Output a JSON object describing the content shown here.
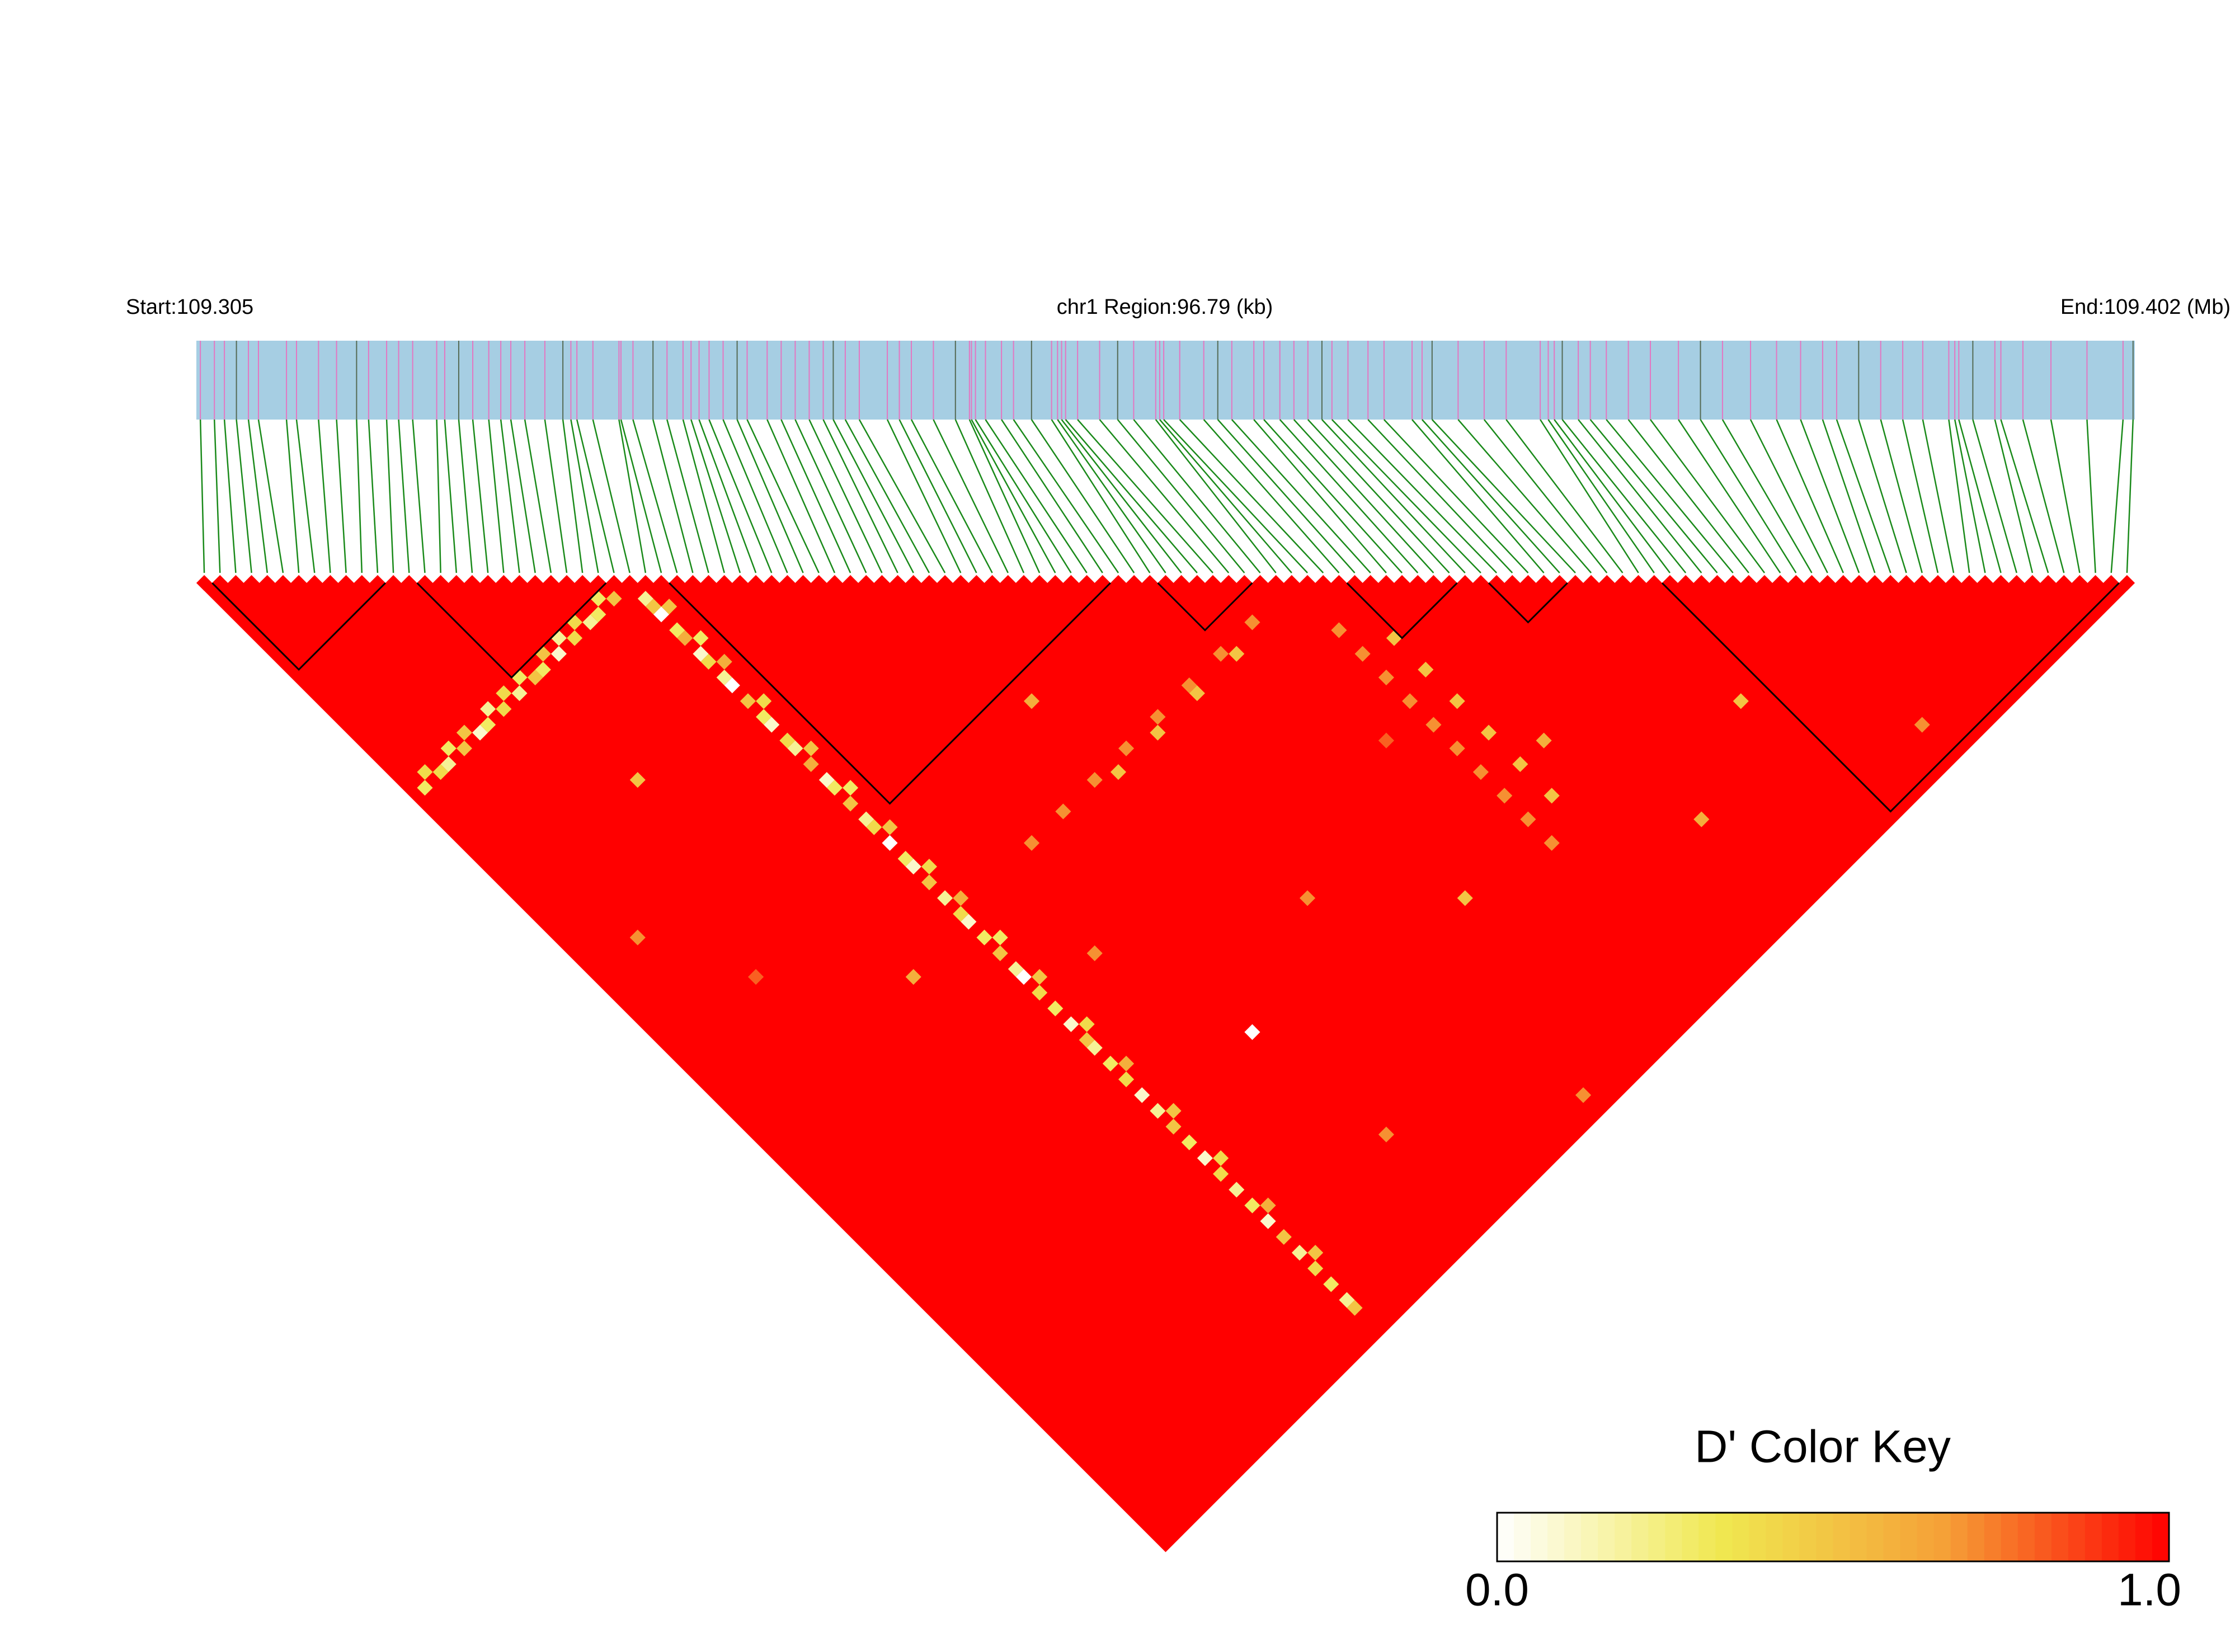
{
  "chart_data": {
    "type": "ld_heatmap",
    "start_label": "Start:109.305",
    "region_label": "chr1 Region:96.79 (kb)",
    "end_label": "End:109.402 (Mb)",
    "xlim": [
      0,
      96.79
    ],
    "snp_positions_kb": [
      0.2,
      0.9,
      1.4,
      2.0,
      2.6,
      3.1,
      4.5,
      5.0,
      6.1,
      7.0,
      8.0,
      8.6,
      9.5,
      10.1,
      10.8,
      12.0,
      12.4,
      13.1,
      13.8,
      14.6,
      15.2,
      15.7,
      16.4,
      17.4,
      18.3,
      18.7,
      19.0,
      19.8,
      21.1,
      21.2,
      21.8,
      22.8,
      23.5,
      24.3,
      24.7,
      25.1,
      25.6,
      26.3,
      27.0,
      27.5,
      28.5,
      29.2,
      29.9,
      30.6,
      31.3,
      31.8,
      32.4,
      33.1,
      34.5,
      35.1,
      35.7,
      36.8,
      37.9,
      38.6,
      38.7,
      38.9,
      39.4,
      40.2,
      40.8,
      41.7,
      42.7,
      43.0,
      43.2,
      43.4,
      44.0,
      45.1,
      46.0,
      46.8,
      47.9,
      48.1,
      48.3,
      49.1,
      50.3,
      51.0,
      51.7,
      52.8,
      53.3,
      54.1,
      54.8,
      55.5,
      56.2,
      56.7,
      57.5,
      58.5,
      59.3,
      60.7,
      61.2,
      61.7,
      63.0,
      64.3,
      65.4,
      67.1,
      67.5,
      67.8,
      68.2,
      69.0,
      69.6,
      70.4,
      71.5,
      72.6,
      74.0,
      75.1,
      76.2,
      77.6,
      78.9,
      80.1,
      81.2,
      81.9,
      83.0,
      84.1,
      85.2,
      86.2,
      87.5,
      87.8,
      88.0,
      88.7,
      89.8,
      90.1,
      91.2,
      92.6,
      94.4,
      96.2,
      96.7
    ],
    "blocks": [
      [
        1,
        11
      ],
      [
        14,
        25
      ],
      [
        30,
        57
      ],
      [
        61,
        66
      ],
      [
        73,
        79
      ],
      [
        82,
        86
      ],
      [
        93,
        121
      ]
    ],
    "colormap": [
      "#ffffff",
      "#f0e850",
      "#f5a037",
      "#ff0000"
    ],
    "color_key_title": "D' Color Key",
    "key_ticks": [
      {
        "value": 0,
        "label": "0.0"
      },
      {
        "value": 1,
        "label": "1.0"
      }
    ],
    "cells": [
      [
        27,
        29,
        0.2
      ],
      [
        27,
        30,
        0.5
      ],
      [
        27,
        31,
        0
      ],
      [
        27,
        33,
        0.3
      ],
      [
        27,
        34,
        0.6
      ],
      [
        27,
        36,
        0.1
      ],
      [
        27,
        37,
        0.4
      ],
      [
        27,
        39,
        0.2
      ],
      [
        27,
        40,
        0
      ],
      [
        27,
        42,
        0.5
      ],
      [
        27,
        44,
        0.3
      ],
      [
        27,
        45,
        0.1
      ],
      [
        27,
        47,
        0.4
      ],
      [
        27,
        48,
        0.2
      ],
      [
        27,
        50,
        0.6
      ],
      [
        27,
        52,
        0.1
      ],
      [
        27,
        53,
        0.3
      ],
      [
        27,
        55,
        0.5
      ],
      [
        27,
        57,
        0.2
      ],
      [
        27,
        58,
        0.4
      ],
      [
        27,
        60,
        0
      ],
      [
        27,
        62,
        0.3
      ],
      [
        27,
        63,
        0.1
      ],
      [
        27,
        65,
        0.5
      ],
      [
        27,
        67,
        0.2
      ],
      [
        27,
        69,
        0.4
      ],
      [
        27,
        70,
        0.1
      ],
      [
        27,
        72,
        0.3
      ],
      [
        27,
        74,
        0.5
      ],
      [
        27,
        76,
        0.2
      ],
      [
        27,
        77,
        0
      ],
      [
        27,
        79,
        0.4
      ],
      [
        27,
        81,
        0.3
      ],
      [
        27,
        83,
        0.1
      ],
      [
        27,
        85,
        0.5
      ],
      [
        27,
        86,
        0.2
      ],
      [
        27,
        88,
        0.3
      ],
      [
        27,
        90,
        0.4
      ],
      [
        27,
        92,
        0.1
      ],
      [
        27,
        94,
        0.2
      ],
      [
        27,
        96,
        0.5
      ],
      [
        27,
        98,
        0.3
      ],
      [
        27,
        100,
        0.1
      ],
      [
        27,
        102,
        0.4
      ],
      [
        27,
        104,
        0.2
      ],
      [
        27,
        106,
        0.3
      ],
      [
        27,
        108,
        0.1
      ],
      [
        27,
        110,
        0.5
      ],
      [
        27,
        112,
        0.2
      ],
      [
        27,
        114,
        0.4
      ],
      [
        27,
        116,
        0.3
      ],
      [
        27,
        118,
        0.2
      ],
      [
        27,
        119,
        0.5
      ],
      [
        1,
        27,
        0.3
      ],
      [
        3,
        27,
        0.4
      ],
      [
        4,
        27,
        0.2
      ],
      [
        6,
        27,
        0.5
      ],
      [
        8,
        27,
        0.1
      ],
      [
        9,
        27,
        0.3
      ],
      [
        11,
        27,
        0.4
      ],
      [
        13,
        27,
        0.2
      ],
      [
        15,
        27,
        0.5
      ],
      [
        16,
        27,
        0.3
      ],
      [
        18,
        27,
        0.1
      ],
      [
        20,
        27,
        0.4
      ],
      [
        22,
        27,
        0.2
      ],
      [
        23,
        27,
        0.3
      ],
      [
        25,
        27,
        0.5
      ],
      [
        2,
        26,
        0.4
      ],
      [
        5,
        26,
        0.3
      ],
      [
        7,
        26,
        0.5
      ],
      [
        10,
        26,
        0.2
      ],
      [
        12,
        26,
        0.4
      ],
      [
        14,
        26,
        0.3
      ],
      [
        17,
        26,
        0.5
      ],
      [
        19,
        26,
        0.2
      ],
      [
        21,
        26,
        0.4
      ],
      [
        24,
        26,
        0.3
      ],
      [
        28,
        31,
        0.5
      ],
      [
        28,
        35,
        0.3
      ],
      [
        28,
        38,
        0.6
      ],
      [
        28,
        43,
        0.4
      ],
      [
        28,
        49,
        0.5
      ],
      [
        28,
        54,
        0.3
      ],
      [
        28,
        59,
        0.5
      ],
      [
        28,
        64,
        0.4
      ],
      [
        28,
        68,
        0.6
      ],
      [
        28,
        73,
        0.3
      ],
      [
        28,
        78,
        0.5
      ],
      [
        28,
        84,
        0.4
      ],
      [
        28,
        89,
        0.6
      ],
      [
        28,
        95,
        0.5
      ],
      [
        28,
        101,
        0.4
      ],
      [
        28,
        107,
        0.6
      ],
      [
        28,
        113,
        0.5
      ],
      [
        69,
        75,
        0.7
      ],
      [
        69,
        78,
        0.7
      ],
      [
        69,
        81,
        0.7
      ],
      [
        69,
        84,
        0.7
      ],
      [
        69,
        87,
        0.7
      ],
      [
        69,
        90,
        0.7
      ],
      [
        69,
        93,
        0.7
      ],
      [
        69,
        96,
        0.7
      ],
      [
        69,
        99,
        0.7
      ],
      [
        69,
        102,
        0.7
      ],
      [
        72,
        79,
        0.5
      ],
      [
        72,
        83,
        0.5
      ],
      [
        72,
        87,
        0.5
      ],
      [
        72,
        91,
        0.5
      ],
      [
        72,
        95,
        0.5
      ],
      [
        72,
        99,
        0.5
      ],
      [
        36,
        69,
        0.7
      ],
      [
        40,
        69,
        0.7
      ],
      [
        44,
        69,
        0.7
      ],
      [
        48,
        69,
        0.7
      ],
      [
        52,
        69,
        0.7
      ],
      [
        56,
        69,
        0.7
      ],
      [
        60,
        69,
        0.7
      ],
      [
        64,
        69,
        0.7
      ],
      [
        46,
        70,
        0.5
      ],
      [
        51,
        70,
        0.5
      ],
      [
        56,
        70,
        0.5
      ],
      [
        61,
        70,
        0.5
      ],
      [
        45,
        60,
        0.6
      ],
      [
        50,
        90,
        0.7
      ],
      [
        10,
        60,
        0.8
      ],
      [
        40,
        110,
        0.7
      ],
      [
        60,
        100,
        0.5
      ],
      [
        20,
        70,
        0.6
      ],
      [
        55,
        120,
        0.7
      ],
      [
        80,
        110,
        0.6
      ],
      [
        100,
        118,
        0.7
      ],
      [
        90,
        105,
        0.5
      ],
      [
        33,
        80,
        0.7
      ],
      [
        15,
        40,
        0.5
      ],
      [
        65,
        85,
        0.8
      ],
      [
        75,
        95,
        0.6
      ],
      [
        5,
        50,
        0.7
      ],
      [
        38,
        95,
        0
      ]
    ]
  }
}
